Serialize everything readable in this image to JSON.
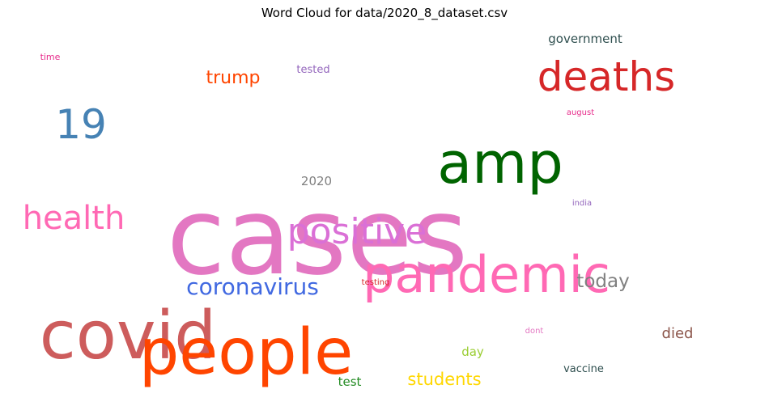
{
  "chart_data": {
    "type": "wordcloud",
    "title": "Word Cloud for data/2020_8_dataset.csv",
    "words": [
      {
        "text": "cases",
        "color": "#e377c2"
      },
      {
        "text": "covid",
        "color": "#cd5c5c"
      },
      {
        "text": "people",
        "color": "#ff4500"
      },
      {
        "text": "amp",
        "color": "#006400"
      },
      {
        "text": "deaths",
        "color": "#d62728"
      },
      {
        "text": "pandemic",
        "color": "#ff69b4"
      },
      {
        "text": "19",
        "color": "#4682b4"
      },
      {
        "text": "health",
        "color": "#ff69b4"
      },
      {
        "text": "positive",
        "color": "#da70d6"
      },
      {
        "text": "coronavirus",
        "color": "#4169e1"
      },
      {
        "text": "today",
        "color": "#808080"
      },
      {
        "text": "trump",
        "color": "#ff4500"
      },
      {
        "text": "students",
        "color": "#ffd700"
      },
      {
        "text": "government",
        "color": "#2f4f4f"
      },
      {
        "text": "died",
        "color": "#8c564b"
      },
      {
        "text": "2020",
        "color": "#808080"
      },
      {
        "text": "tested",
        "color": "#9467bd"
      },
      {
        "text": "day",
        "color": "#9acd32"
      },
      {
        "text": "vaccine",
        "color": "#2f4f4f"
      },
      {
        "text": "test",
        "color": "#228b22"
      },
      {
        "text": "time",
        "color": "#e7298a"
      },
      {
        "text": "august",
        "color": "#e7298a"
      },
      {
        "text": "india",
        "color": "#9467bd"
      },
      {
        "text": "testing",
        "color": "#d62728"
      },
      {
        "text": "dont",
        "color": "#e377c2"
      }
    ]
  }
}
